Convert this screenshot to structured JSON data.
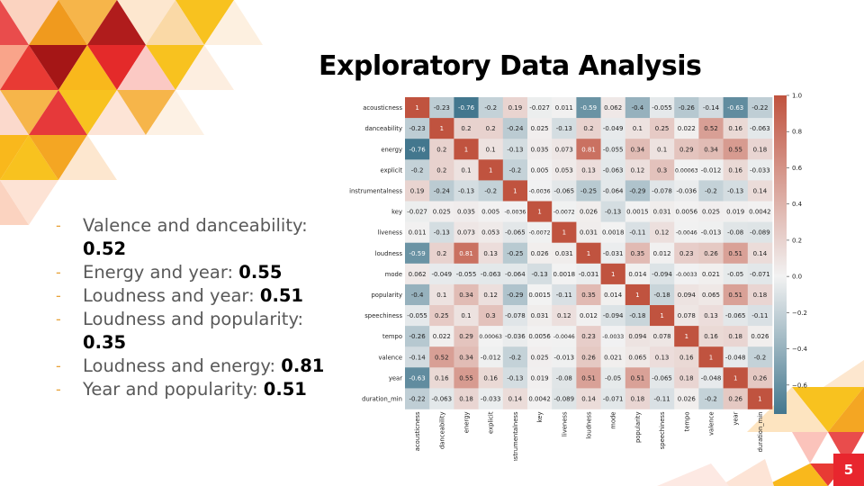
{
  "slide": {
    "title": "Exploratory Data Analysis",
    "number": "5",
    "bullets": [
      {
        "text": "Valence and danceability: ",
        "value": "0.52"
      },
      {
        "text": "Energy and year: ",
        "value": "0.55"
      },
      {
        "text": "Loudness and year: ",
        "value": "0.51"
      },
      {
        "text": "Loudness and popularity: ",
        "value": "0.35"
      },
      {
        "text": "Loudness and energy: ",
        "value": "0.81"
      },
      {
        "text": "Year and popularity: ",
        "value": "0.51"
      }
    ],
    "bullet_marker": "-"
  },
  "chart_data": {
    "type": "heatmap",
    "labels": [
      "acousticness",
      "danceability",
      "energy",
      "explicit",
      "instrumentalness",
      "key",
      "liveness",
      "loudness",
      "mode",
      "popularity",
      "speechiness",
      "tempo",
      "valence",
      "year",
      "duration_min"
    ],
    "matrix": [
      [
        "1",
        "-0.23",
        "-0.76",
        "-0.2",
        "0.19",
        "-0.027",
        "0.011",
        "-0.59",
        "0.062",
        "-0.4",
        "-0.055",
        "-0.26",
        "-0.14",
        "-0.63",
        "-0.22"
      ],
      [
        "-0.23",
        "1",
        "0.2",
        "0.2",
        "-0.24",
        "0.025",
        "-0.13",
        "0.2",
        "-0.049",
        "0.1",
        "0.25",
        "0.022",
        "0.52",
        "0.16",
        "-0.063"
      ],
      [
        "-0.76",
        "0.2",
        "1",
        "0.1",
        "-0.13",
        "0.035",
        "0.073",
        "0.81",
        "-0.055",
        "0.34",
        "0.1",
        "0.29",
        "0.34",
        "0.55",
        "0.18"
      ],
      [
        "-0.2",
        "0.2",
        "0.1",
        "1",
        "-0.2",
        "0.005",
        "0.053",
        "0.13",
        "-0.063",
        "0.12",
        "0.3",
        "0.00063",
        "-0.012",
        "0.16",
        "-0.033"
      ],
      [
        "0.19",
        "-0.24",
        "-0.13",
        "-0.2",
        "1",
        "-0.0036",
        "-0.065",
        "-0.25",
        "-0.064",
        "-0.29",
        "-0.078",
        "-0.036",
        "-0.2",
        "-0.13",
        "0.14"
      ],
      [
        "-0.027",
        "0.025",
        "0.035",
        "0.005",
        "-0.0036",
        "1",
        "-0.0072",
        "0.026",
        "-0.13",
        "0.0015",
        "0.031",
        "0.0056",
        "0.025",
        "0.019",
        "0.0042"
      ],
      [
        "0.011",
        "-0.13",
        "0.073",
        "0.053",
        "-0.065",
        "-0.0072",
        "1",
        "0.031",
        "0.0018",
        "-0.11",
        "0.12",
        "-0.0046",
        "-0.013",
        "-0.08",
        "-0.089"
      ],
      [
        "-0.59",
        "0.2",
        "0.81",
        "0.13",
        "-0.25",
        "0.026",
        "0.031",
        "1",
        "-0.031",
        "0.35",
        "0.012",
        "0.23",
        "0.26",
        "0.51",
        "0.14"
      ],
      [
        "0.062",
        "-0.049",
        "-0.055",
        "-0.063",
        "-0.064",
        "-0.13",
        "0.0018",
        "-0.031",
        "1",
        "0.014",
        "-0.094",
        "-0.0033",
        "0.021",
        "-0.05",
        "-0.071"
      ],
      [
        "-0.4",
        "0.1",
        "0.34",
        "0.12",
        "-0.29",
        "0.0015",
        "-0.11",
        "0.35",
        "0.014",
        "1",
        "-0.18",
        "0.094",
        "0.065",
        "0.51",
        "0.18"
      ],
      [
        "-0.055",
        "0.25",
        "0.1",
        "0.3",
        "-0.078",
        "0.031",
        "0.12",
        "0.012",
        "-0.094",
        "-0.18",
        "1",
        "0.078",
        "0.13",
        "-0.065",
        "-0.11"
      ],
      [
        "-0.26",
        "0.022",
        "0.29",
        "0.00063",
        "-0.036",
        "0.0056",
        "-0.0046",
        "0.23",
        "-0.0033",
        "0.094",
        "0.078",
        "1",
        "0.16",
        "0.18",
        "0.026"
      ],
      [
        "-0.14",
        "0.52",
        "0.34",
        "-0.012",
        "-0.2",
        "0.025",
        "-0.013",
        "0.26",
        "0.021",
        "0.065",
        "0.13",
        "0.16",
        "1",
        "-0.048",
        "-0.2"
      ],
      [
        "-0.63",
        "0.16",
        "0.55",
        "0.16",
        "-0.13",
        "0.019",
        "-0.08",
        "0.51",
        "-0.05",
        "0.51",
        "-0.065",
        "0.18",
        "-0.048",
        "1",
        "0.26"
      ],
      [
        "-0.22",
        "-0.063",
        "0.18",
        "-0.033",
        "0.14",
        "0.0042",
        "-0.089",
        "0.14",
        "-0.071",
        "0.18",
        "-0.11",
        "0.026",
        "-0.2",
        "0.26",
        "1"
      ]
    ],
    "colorbar": {
      "range": [
        -0.76,
        1.0
      ],
      "ticks": [
        "1.0",
        "0.8",
        "0.6",
        "0.4",
        "0.2",
        "0.0",
        "−0.2",
        "−0.4",
        "−0.6"
      ],
      "tick_values": [
        1.0,
        0.8,
        0.6,
        0.4,
        0.2,
        0.0,
        -0.2,
        -0.4,
        -0.6
      ],
      "low_color": "#43778e",
      "mid_color": "#f2f2f2",
      "high_color": "#c0533f"
    }
  },
  "theme": {
    "accent_red": "#e8262e",
    "accent_orange": "#f2a81d",
    "accent_yellow": "#f8c21f",
    "bullet_dash": "#e8a33a"
  }
}
